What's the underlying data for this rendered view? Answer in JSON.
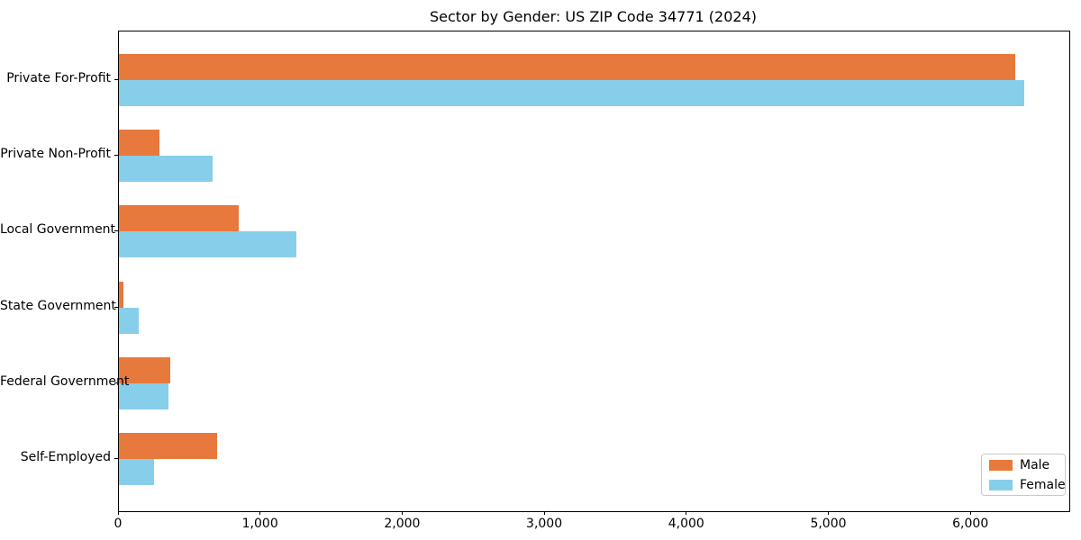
{
  "figure": {
    "title": "Sector by Gender: US ZIP Code 34771 (2024)"
  },
  "chart_data": {
    "type": "bar",
    "orientation": "horizontal",
    "title": "Sector by Gender: US ZIP Code 34771 (2024)",
    "categories": [
      "Private For-Profit",
      "Private Non-Profit",
      "Local Government",
      "State Government",
      "Federal Government",
      "Self-Employed"
    ],
    "series": [
      {
        "name": "Male",
        "color": "#e8793c",
        "values": [
          6312,
          283,
          844,
          33,
          360,
          691
        ]
      },
      {
        "name": "Female",
        "color": "#87ceeb",
        "values": [
          6370,
          660,
          1248,
          141,
          347,
          248
        ]
      }
    ],
    "xlabel": "",
    "ylabel": "",
    "xlim": [
      0,
      6690
    ],
    "xticks": {
      "values": [
        0,
        1000,
        2000,
        3000,
        4000,
        5000,
        6000
      ],
      "labels": [
        "0",
        "1,000",
        "2,000",
        "3,000",
        "4,000",
        "5,000",
        "6,000"
      ]
    },
    "grid": false,
    "legend": {
      "position": "lower right",
      "entries": [
        "Male",
        "Female"
      ]
    }
  }
}
